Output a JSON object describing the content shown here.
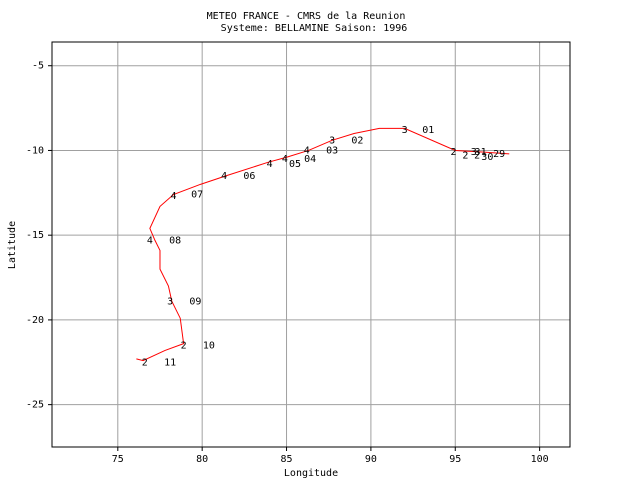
{
  "chart_data": {
    "type": "line",
    "title": "METEO FRANCE - CMRS de la Reunion",
    "subtitle": "Systeme: BELLAMINE  Saison: 1996",
    "x_label": "Longitude",
    "y_label": "Latitude",
    "xlim": [
      71.1,
      101.8
    ],
    "ylim": [
      -27.5,
      -3.6
    ],
    "xticks": [
      75,
      80,
      85,
      90,
      95,
      100
    ],
    "yticks": [
      -5,
      -10,
      -15,
      -20,
      -25
    ],
    "grid": true,
    "series": [
      {
        "color": "#ff0000",
        "x": [
          98.2,
          96.7,
          95.0,
          92.0,
          90.5,
          89.0,
          87.7,
          86.3,
          85.0,
          83.9,
          81.4,
          79.9,
          78.3,
          77.5,
          76.9,
          77.2,
          77.5,
          77.5,
          78.0,
          78.2,
          78.7,
          78.9,
          77.8,
          76.5,
          76.1
        ],
        "values": [
          -10.2,
          -10.1,
          -10.0,
          -8.7,
          -8.7,
          -9.0,
          -9.4,
          -10.0,
          -10.4,
          -10.7,
          -11.5,
          -12.0,
          -12.6,
          -13.3,
          -14.6,
          -15.3,
          -15.9,
          -17.0,
          -18.0,
          -18.9,
          -19.9,
          -21.4,
          -21.8,
          -22.4,
          -22.3
        ]
      }
    ],
    "annotations": [
      {
        "text": "3",
        "x": 92.0,
        "y": -8.8
      },
      {
        "text": "2",
        "x": 94.9,
        "y": -10.1
      },
      {
        "text": "2",
        "x": 95.6,
        "y": -10.3
      },
      {
        "text": "3",
        "x": 96.1,
        "y": -10.1
      },
      {
        "text": "2",
        "x": 96.3,
        "y": -10.3
      },
      {
        "text": "3",
        "x": 87.7,
        "y": -9.4
      },
      {
        "text": "4",
        "x": 86.2,
        "y": -10.0
      },
      {
        "text": "4",
        "x": 84.9,
        "y": -10.5
      },
      {
        "text": "4",
        "x": 84.0,
        "y": -10.8
      },
      {
        "text": "4",
        "x": 81.3,
        "y": -11.5
      },
      {
        "text": "4",
        "x": 78.3,
        "y": -12.7
      },
      {
        "text": "4",
        "x": 76.9,
        "y": -15.3
      },
      {
        "text": "3",
        "x": 78.1,
        "y": -18.9
      },
      {
        "text": "2",
        "x": 78.9,
        "y": -21.5
      },
      {
        "text": "2",
        "x": 76.6,
        "y": -22.5
      },
      {
        "text": "01",
        "x": 93.4,
        "y": -8.8
      },
      {
        "text": "02",
        "x": 89.2,
        "y": -9.4
      },
      {
        "text": "03",
        "x": 87.7,
        "y": -10.0
      },
      {
        "text": "04",
        "x": 86.4,
        "y": -10.5
      },
      {
        "text": "05",
        "x": 85.5,
        "y": -10.8
      },
      {
        "text": "06",
        "x": 82.8,
        "y": -11.5
      },
      {
        "text": "07",
        "x": 79.7,
        "y": -12.6
      },
      {
        "text": "08",
        "x": 78.4,
        "y": -15.3
      },
      {
        "text": "09",
        "x": 79.6,
        "y": -18.9
      },
      {
        "text": "10",
        "x": 80.4,
        "y": -21.5
      },
      {
        "text": "11",
        "x": 78.1,
        "y": -22.5
      },
      {
        "text": "29",
        "x": 97.6,
        "y": -10.2
      },
      {
        "text": "30",
        "x": 96.9,
        "y": -10.4
      },
      {
        "text": "31",
        "x": 96.5,
        "y": -10.1
      }
    ]
  }
}
